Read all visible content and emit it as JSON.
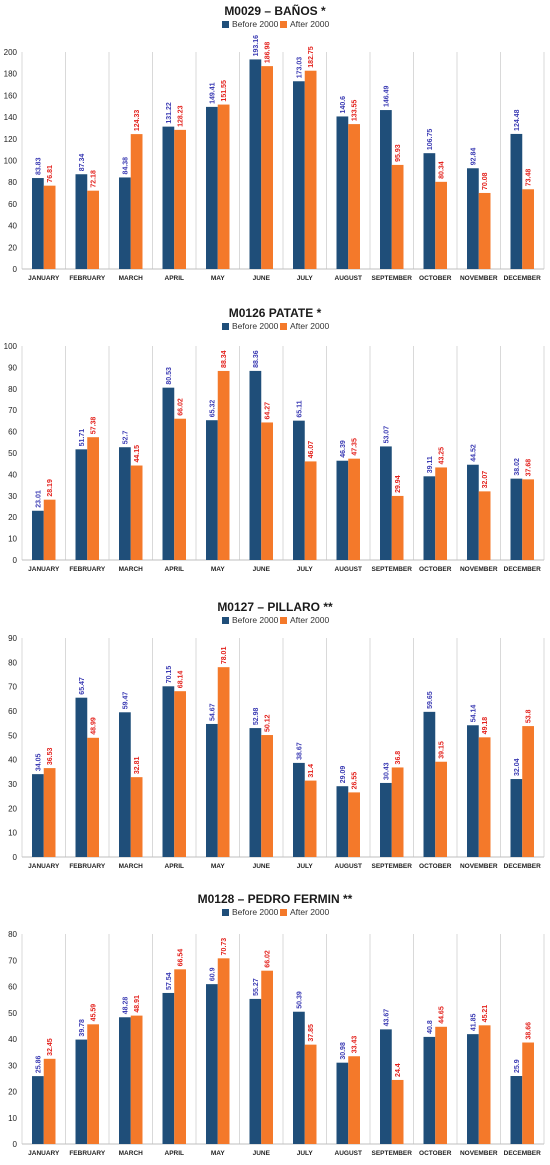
{
  "legend": {
    "before_label": "Before 2000",
    "after_label": "After 2000"
  },
  "colors": {
    "before": "#1f4e79",
    "after": "#f4792a",
    "before_label": "#3b3bb3",
    "after_label": "#e3211c",
    "grid": "#d0d0d0"
  },
  "chart_data": [
    {
      "type": "bar",
      "title": "M0029 – BAÑOS *",
      "categories": [
        "JANUARY",
        "FEBRUARY",
        "MARCH",
        "APRIL",
        "MAY",
        "JUNE",
        "JULY",
        "AUGUST",
        "SEPTEMBER",
        "OCTOBER",
        "NOVEMBER",
        "DECEMBER"
      ],
      "series": [
        {
          "name": "Before 2000",
          "values": [
            83.83,
            87.34,
            84.38,
            131.22,
            149.41,
            193.16,
            173.03,
            140.6,
            146.49,
            106.75,
            92.84,
            124.48
          ]
        },
        {
          "name": "After 2000",
          "values": [
            76.81,
            72.18,
            124.33,
            128.23,
            151.55,
            186.98,
            182.75,
            133.55,
            95.93,
            80.34,
            70.08,
            73.48
          ]
        }
      ],
      "yticks": [
        0,
        20,
        40,
        60,
        80,
        100,
        120,
        140,
        160,
        180,
        200
      ],
      "ylim": [
        0,
        200
      ],
      "legend_position": "top"
    },
    {
      "type": "bar",
      "title": "M0126 PATATE *",
      "categories": [
        "JANUARY",
        "FEBRUARY",
        "MARCH",
        "APRIL",
        "MAY",
        "JUNE",
        "JULY",
        "AUGUST",
        "SEPTEMBER",
        "OCTOBER",
        "NOVEMBER",
        "DECEMBER"
      ],
      "series": [
        {
          "name": "Before 2000",
          "values": [
            23.01,
            51.71,
            52.7,
            80.53,
            65.32,
            88.36,
            65.11,
            46.39,
            53.07,
            39.11,
            44.52,
            38.02
          ]
        },
        {
          "name": "After 2000",
          "values": [
            28.19,
            57.38,
            44.15,
            66.02,
            88.34,
            64.27,
            46.07,
            47.35,
            29.94,
            43.25,
            32.07,
            37.68
          ]
        }
      ],
      "yticks": [
        0,
        10,
        20,
        30,
        40,
        50,
        60,
        70,
        80,
        90,
        100
      ],
      "ylim": [
        0,
        100
      ],
      "legend_position": "top"
    },
    {
      "type": "bar",
      "title": "M0127 – PILLARO **",
      "categories": [
        "JANUARY",
        "FEBRUARY",
        "MARCH",
        "APRIL",
        "MAY",
        "JUNE",
        "JULY",
        "AUGUST",
        "SEPTEMBER",
        "OCTOBER",
        "NOVEMBER",
        "DECEMBER"
      ],
      "series": [
        {
          "name": "Before 2000",
          "values": [
            34.05,
            65.47,
            59.47,
            70.15,
            54.67,
            52.98,
            38.67,
            29.09,
            30.43,
            59.65,
            54.14,
            32.04
          ]
        },
        {
          "name": "After 2000",
          "values": [
            36.53,
            48.99,
            32.81,
            68.14,
            78.01,
            50.12,
            31.4,
            26.55,
            36.8,
            39.15,
            49.18,
            53.8
          ]
        }
      ],
      "yticks": [
        0,
        10,
        20,
        30,
        40,
        50,
        60,
        70,
        80,
        90
      ],
      "ylim": [
        0,
        90
      ],
      "legend_position": "top"
    },
    {
      "type": "bar",
      "title": "M0128 – PEDRO FERMIN **",
      "categories": [
        "JANUARY",
        "FEBRUARY",
        "MARCH",
        "APRIL",
        "MAY",
        "JUNE",
        "JULY",
        "AUGUST",
        "SEPTEMBER",
        "OCTOBER",
        "NOVEMBER",
        "DECEMBER"
      ],
      "series": [
        {
          "name": "Before 2000",
          "values": [
            25.86,
            39.78,
            48.28,
            57.54,
            60.9,
            55.27,
            50.39,
            30.98,
            43.67,
            40.8,
            41.85,
            25.9
          ]
        },
        {
          "name": "After 2000",
          "values": [
            32.45,
            45.59,
            48.91,
            66.54,
            70.73,
            66.02,
            37.85,
            33.43,
            24.4,
            44.65,
            45.21,
            38.66
          ]
        }
      ],
      "yticks": [
        0,
        10,
        20,
        30,
        40,
        50,
        60,
        70,
        80
      ],
      "ylim": [
        0,
        80
      ],
      "legend_position": "top"
    }
  ]
}
